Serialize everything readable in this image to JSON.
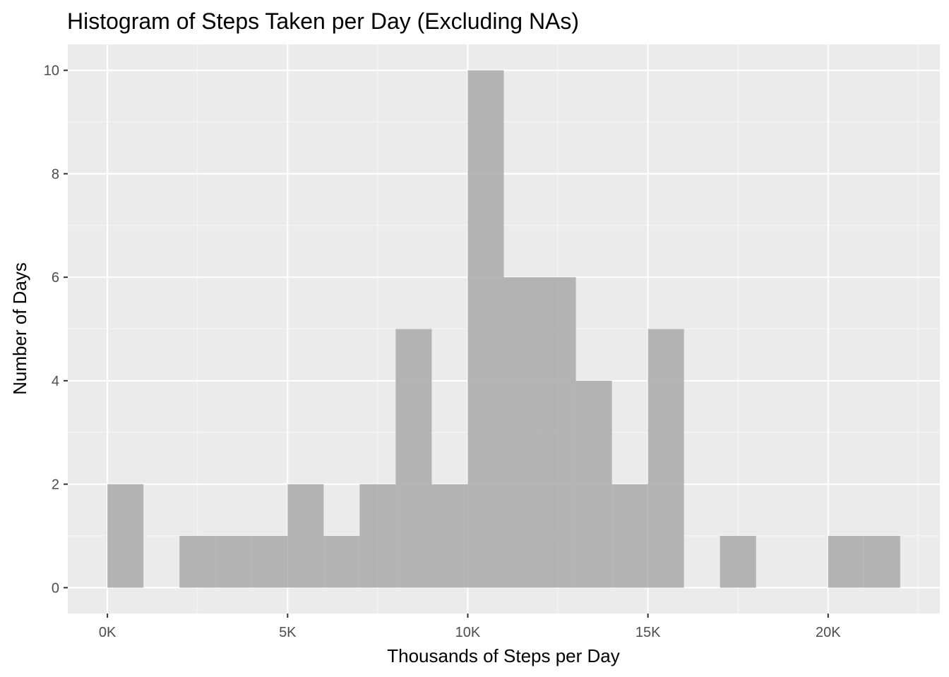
{
  "chart_data": {
    "type": "bar",
    "title": "Histogram of Steps Taken per Day (Excluding NAs)",
    "xlabel": "Thousands of Steps per Day",
    "ylabel": "Number of Days",
    "bin_width": 1000,
    "bins": [
      {
        "start": 0,
        "end": 1000,
        "count": 2
      },
      {
        "start": 1000,
        "end": 2000,
        "count": 0
      },
      {
        "start": 2000,
        "end": 3000,
        "count": 1
      },
      {
        "start": 3000,
        "end": 4000,
        "count": 1
      },
      {
        "start": 4000,
        "end": 5000,
        "count": 1
      },
      {
        "start": 5000,
        "end": 6000,
        "count": 2
      },
      {
        "start": 6000,
        "end": 7000,
        "count": 1
      },
      {
        "start": 7000,
        "end": 8000,
        "count": 2
      },
      {
        "start": 8000,
        "end": 9000,
        "count": 5
      },
      {
        "start": 9000,
        "end": 10000,
        "count": 2
      },
      {
        "start": 10000,
        "end": 11000,
        "count": 10
      },
      {
        "start": 11000,
        "end": 12000,
        "count": 6
      },
      {
        "start": 12000,
        "end": 13000,
        "count": 6
      },
      {
        "start": 13000,
        "end": 14000,
        "count": 4
      },
      {
        "start": 14000,
        "end": 15000,
        "count": 2
      },
      {
        "start": 15000,
        "end": 16000,
        "count": 5
      },
      {
        "start": 16000,
        "end": 17000,
        "count": 0
      },
      {
        "start": 17000,
        "end": 18000,
        "count": 1
      },
      {
        "start": 18000,
        "end": 19000,
        "count": 0
      },
      {
        "start": 19000,
        "end": 20000,
        "count": 0
      },
      {
        "start": 20000,
        "end": 21000,
        "count": 1
      },
      {
        "start": 21000,
        "end": 22000,
        "count": 1
      }
    ],
    "xlim": [
      -1100,
      23100
    ],
    "ylim": [
      -0.5,
      10.5
    ],
    "x_ticks": [
      {
        "value": 0,
        "label": "0K"
      },
      {
        "value": 5000,
        "label": "5K"
      },
      {
        "value": 10000,
        "label": "10K"
      },
      {
        "value": 15000,
        "label": "15K"
      },
      {
        "value": 20000,
        "label": "20K"
      }
    ],
    "x_minor_ticks": [
      2500,
      7500,
      12500,
      17500,
      22500
    ],
    "y_ticks": [
      {
        "value": 0,
        "label": "0"
      },
      {
        "value": 2,
        "label": "2"
      },
      {
        "value": 4,
        "label": "4"
      },
      {
        "value": 6,
        "label": "6"
      },
      {
        "value": 8,
        "label": "8"
      },
      {
        "value": 10,
        "label": "10"
      }
    ],
    "y_minor_ticks": [
      1,
      3,
      5,
      7,
      9
    ],
    "grid": true,
    "legend": "none",
    "colors": {
      "panel_background": "#ebebeb",
      "grid_major": "#ffffff",
      "grid_minor": "#f7f7f7",
      "bar_fill": "#b0b0b0",
      "tick_mark": "#333333"
    }
  }
}
